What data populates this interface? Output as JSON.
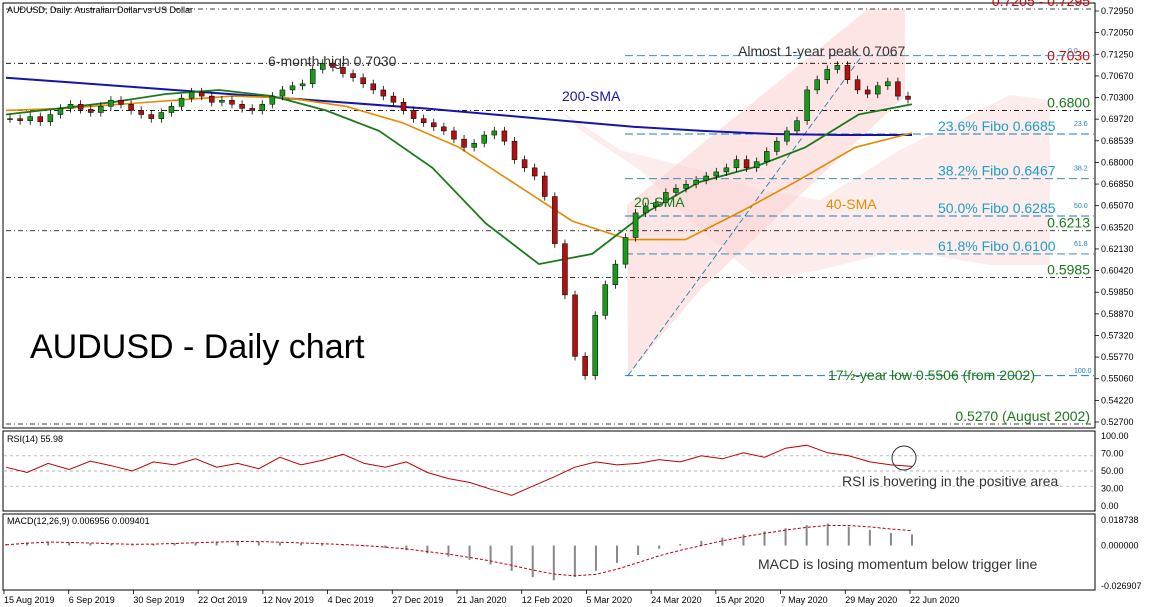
{
  "chart_data": {
    "type": "line",
    "header": "AUDUSD, Daily: Australian Dollar vs US Dollar",
    "main_title": "AUDUSD - Daily chart",
    "x_ticks": [
      "15 Aug 2019",
      "6 Sep 2019",
      "30 Sep 2019",
      "22 Oct 2019",
      "12 Nov 2019",
      "4 Dec 2019",
      "27 Dec 2019",
      "21 Jan 2020",
      "12 Feb 2020",
      "5 Mar 2020",
      "24 Mar 2020",
      "15 Apr 2020",
      "7 May 2020",
      "29 May 2020",
      "22 Jun 2020"
    ],
    "price_axis": {
      "ylim": [
        0.527,
        0.7295
      ],
      "ticks": [
        "0.72950",
        "0.72050",
        "0.71250",
        "0.70670",
        "0.70300",
        "0.69720",
        "0.68539",
        "0.68000",
        "0.66850",
        "0.65070",
        "0.63520",
        "0.62130",
        "0.60420",
        "0.59850",
        "0.58870",
        "0.57320",
        "0.55770",
        "0.55060",
        "0.54220",
        "0.52700"
      ]
    },
    "price_series": {
      "name": "Close",
      "values": [
        0.676,
        0.675,
        0.677,
        0.6745,
        0.678,
        0.681,
        0.683,
        0.6805,
        0.679,
        0.682,
        0.685,
        0.683,
        0.68,
        0.678,
        0.676,
        0.679,
        0.682,
        0.686,
        0.689,
        0.687,
        0.684,
        0.685,
        0.683,
        0.681,
        0.68,
        0.683,
        0.687,
        0.69,
        0.692,
        0.693,
        0.7,
        0.703,
        0.701,
        0.698,
        0.696,
        0.693,
        0.69,
        0.687,
        0.684,
        0.68,
        0.676,
        0.674,
        0.672,
        0.67,
        0.666,
        0.662,
        0.664,
        0.668,
        0.67,
        0.665,
        0.656,
        0.652,
        0.648,
        0.638,
        0.615,
        0.59,
        0.56,
        0.5506,
        0.58,
        0.595,
        0.605,
        0.618,
        0.63,
        0.633,
        0.635,
        0.64,
        0.642,
        0.644,
        0.646,
        0.648,
        0.65,
        0.652,
        0.656,
        0.652,
        0.655,
        0.66,
        0.665,
        0.67,
        0.675,
        0.69,
        0.695,
        0.7,
        0.702,
        0.695,
        0.69,
        0.688,
        0.692,
        0.694,
        0.687,
        0.6854
      ]
    },
    "sma200": {
      "label": "200-SMA",
      "values": [
        0.696,
        0.6935,
        0.691,
        0.6885,
        0.686,
        0.6835,
        0.681,
        0.678,
        0.675,
        0.672,
        0.67,
        0.6685,
        0.668,
        0.668
      ]
    },
    "sma40": {
      "label": "40-SMA",
      "values": [
        0.68,
        0.681,
        0.683,
        0.685,
        0.687,
        0.686,
        0.682,
        0.674,
        0.662,
        0.644,
        0.626,
        0.617,
        0.617,
        0.631,
        0.646,
        0.662,
        0.669
      ]
    },
    "sma20": {
      "label": "20-SMA",
      "values": [
        0.678,
        0.681,
        0.684,
        0.688,
        0.69,
        0.687,
        0.68,
        0.67,
        0.652,
        0.625,
        0.605,
        0.61,
        0.63,
        0.645,
        0.652,
        0.662,
        0.678,
        0.683
      ]
    },
    "levels": [
      {
        "label": "0.7205 - 0.7295",
        "value": 0.7295,
        "color": "#d40000"
      },
      {
        "label": "0.7030",
        "value": 0.703,
        "color": "#d40000"
      },
      {
        "label": "0.6800",
        "value": 0.68,
        "color": "#1a7a1a"
      },
      {
        "label": "0.6213",
        "value": 0.6213,
        "color": "#1a7a1a"
      },
      {
        "label": "0.5985",
        "value": 0.5985,
        "color": "#1a7a1a"
      },
      {
        "label": "0.5270 (August 2002)",
        "value": 0.527,
        "color": "#1a7a1a"
      }
    ],
    "fibo": [
      {
        "label": "23.6% Fibo 0.6685",
        "value": 0.6685,
        "pct": "23.6"
      },
      {
        "label": "38.2% Fibo 0.6467",
        "value": 0.6467,
        "pct": "38.2"
      },
      {
        "label": "50.0% Fibo 0.6285",
        "value": 0.6285,
        "pct": "50.0"
      },
      {
        "label": "61.8% Fibo 0.6100",
        "value": 0.61,
        "pct": "61.8"
      }
    ],
    "annotations": {
      "six_month_high": "6-month high 0.7030",
      "almost_peak": "Almost 1-year peak 0.7067",
      "low": "17½-year low 0.5506 (from 2002)",
      "fibo_top": "0.0",
      "fibo_bottom": "100.0"
    },
    "rsi": {
      "header": "RSI(14) 55.98",
      "ylim": [
        0,
        100
      ],
      "ticks": [
        "100.00",
        "70.00",
        "50.00",
        "30.00",
        "0.00"
      ],
      "values": [
        55,
        48,
        60,
        52,
        63,
        57,
        50,
        62,
        58,
        66,
        55,
        60,
        53,
        68,
        58,
        64,
        72,
        60,
        55,
        62,
        48,
        40,
        35,
        26,
        18,
        30,
        42,
        55,
        62,
        58,
        60,
        65,
        62,
        70,
        66,
        74,
        68,
        80,
        84,
        74,
        70,
        62,
        58,
        56
      ],
      "comment": "RSI is hovering in the positive area"
    },
    "macd": {
      "header": "MACD(12,26,9) 0.006956 0.009401",
      "ylim": [
        -0.026907,
        0.018738
      ],
      "ticks": [
        "0.018738",
        "0.000000",
        "-0.026907"
      ],
      "hist": [
        0.001,
        0.002,
        0.0025,
        0.002,
        0.0015,
        0.001,
        0.0005,
        0.001,
        0.0015,
        0.002,
        0.0025,
        0.003,
        0.0025,
        0.002,
        0.0015,
        0.001,
        0.0005,
        -0.0005,
        -0.0015,
        -0.003,
        -0.005,
        -0.007,
        -0.009,
        -0.012,
        -0.016,
        -0.02,
        -0.022,
        -0.02,
        -0.016,
        -0.011,
        -0.006,
        -0.002,
        0.001,
        0.003,
        0.005,
        0.007,
        0.009,
        0.011,
        0.013,
        0.014,
        0.012,
        0.01,
        0.008,
        0.007
      ],
      "signal": [
        0.0005,
        0.0015,
        0.0022,
        0.002,
        0.0016,
        0.0012,
        0.0008,
        0.0009,
        0.0013,
        0.0018,
        0.0022,
        0.0026,
        0.0025,
        0.0021,
        0.0017,
        0.0012,
        0.0007,
        0.0,
        -0.001,
        -0.0022,
        -0.0038,
        -0.0055,
        -0.0075,
        -0.0098,
        -0.0125,
        -0.0155,
        -0.018,
        -0.0192,
        -0.0182,
        -0.015,
        -0.0108,
        -0.0065,
        -0.003,
        0.0,
        0.003,
        0.0055,
        0.0078,
        0.0098,
        0.0115,
        0.0128,
        0.0127,
        0.0118,
        0.0105,
        0.0094
      ],
      "comment": "MACD is losing momentum below trigger line"
    }
  }
}
